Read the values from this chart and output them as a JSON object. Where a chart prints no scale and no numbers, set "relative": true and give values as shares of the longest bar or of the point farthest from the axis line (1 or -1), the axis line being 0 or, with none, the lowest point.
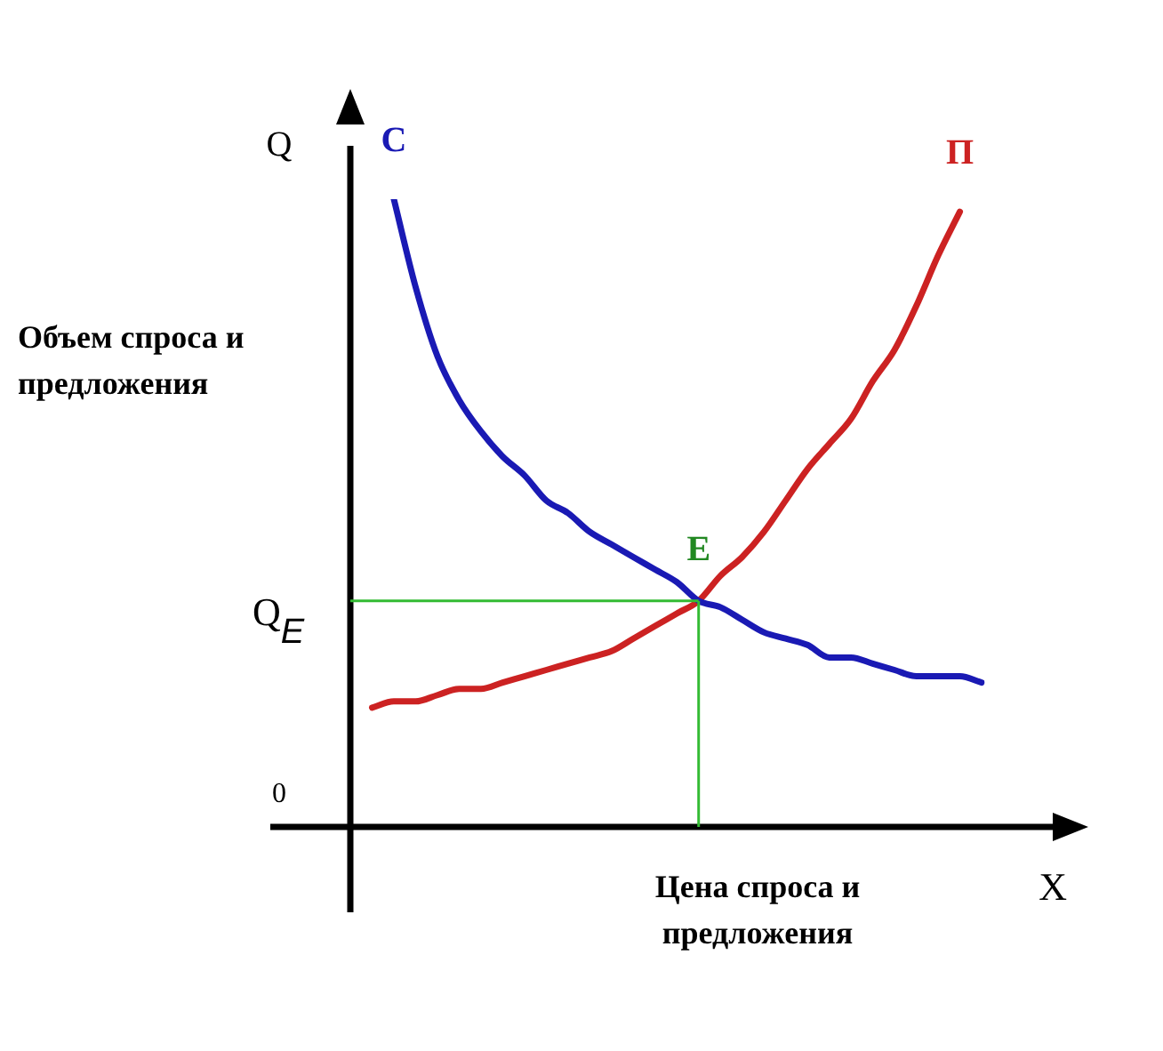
{
  "chart_data": {
    "type": "line",
    "relative": true,
    "xlabel": "Цена спроса и предложения",
    "ylabel": "Объем спроса и предложения",
    "categories": [
      null,
      null,
      null,
      null,
      null,
      null,
      null,
      null,
      null,
      null,
      null,
      null,
      null,
      null,
      null,
      null,
      null,
      null,
      null,
      null,
      null,
      null,
      null,
      null,
      null,
      null,
      null,
      null,
      null,
      null
    ],
    "series": [
      {
        "name": "С",
        "color": "#1a1ab4",
        "values": [
          null,
          null,
          1,
          0.86,
          0.75,
          0.68,
          0.63,
          0.59,
          0.56,
          0.52,
          0.5,
          0.47,
          0.45,
          0.43,
          0.41,
          0.39,
          0.36,
          0.35,
          0.33,
          0.31,
          0.3,
          0.29,
          0.27,
          0.27,
          0.26,
          0.25,
          0.24,
          0.24,
          0.24,
          0.23
        ]
      },
      {
        "name": "П",
        "color": "#cc2222",
        "values": [
          null,
          0.19,
          0.2,
          0.2,
          0.21,
          0.22,
          0.22,
          0.23,
          0.24,
          0.25,
          0.26,
          0.27,
          0.28,
          0.3,
          0.32,
          0.34,
          0.36,
          0.4,
          0.43,
          0.47,
          0.52,
          0.57,
          0.61,
          0.65,
          0.71,
          0.76,
          0.83,
          0.91,
          0.98,
          null
        ]
      }
    ],
    "ref_lines": [
      {
        "axis": "y",
        "value": 0.36,
        "label": "Q$_{E}$",
        "color": "#33bb33"
      }
    ],
    "annotations": [
      "Q",
      "X",
      "0",
      "E"
    ],
    "legend": false,
    "marker": "none",
    "line_style": "solid"
  }
}
